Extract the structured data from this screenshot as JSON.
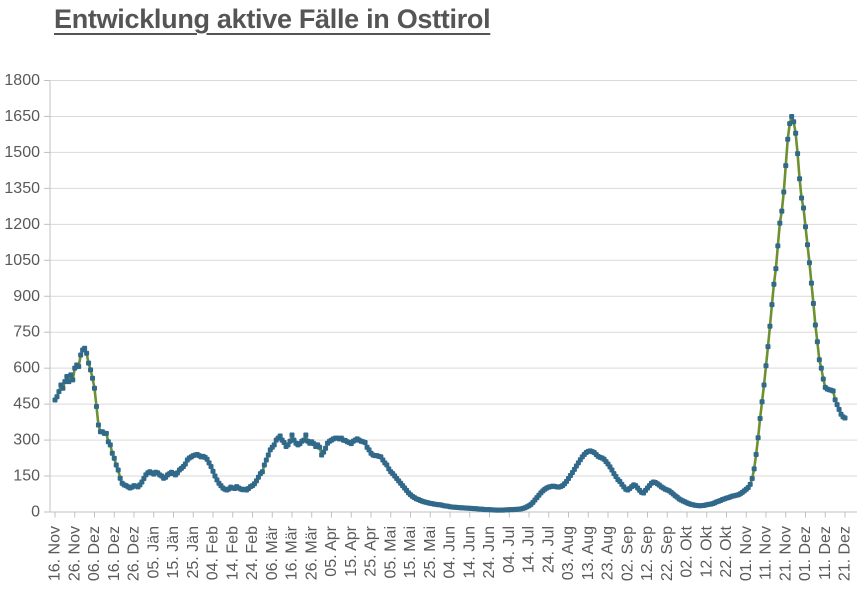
{
  "title": "Entwicklung aktive Fälle in Osttirol",
  "chart_data": {
    "type": "line",
    "title": "Entwicklung aktive Fälle in Osttirol",
    "xlabel": "",
    "ylabel": "",
    "ylim": [
      0,
      1800
    ],
    "y_ticks": [
      0,
      150,
      300,
      450,
      600,
      750,
      900,
      1050,
      1200,
      1350,
      1500,
      1650,
      1800
    ],
    "grid": true,
    "legend_position": "none",
    "marker_shape": "square",
    "x_interval": "daily",
    "x_tick_every_days": 10,
    "x_tick_labels": [
      "16. Nov",
      "26. Nov",
      "06. Dez",
      "16. Dez",
      "26. Dez",
      "05. Jän",
      "15. Jän",
      "25. Jän",
      "04. Feb",
      "14. Feb",
      "24. Feb",
      "06. Mär",
      "16. Mär",
      "26. Mär",
      "05. Apr",
      "15. Apr",
      "25. Apr",
      "05. Mai",
      "15. Mai",
      "25. Mai",
      "04. Jun",
      "14. Jun",
      "24. Jun",
      "04. Jul",
      "14. Jul",
      "24. Jul",
      "03. Aug",
      "13. Aug",
      "23. Aug",
      "02. Sep",
      "12. Sep",
      "22. Sep",
      "02. Okt",
      "12. Okt",
      "22. Okt",
      "01. Nov",
      "11. Nov",
      "21. Nov",
      "01. Dez",
      "11. Dez",
      "21. Dez"
    ],
    "series": [
      {
        "name": "aktive Fälle",
        "values": [
          467,
          481,
          502,
          530,
          516,
          544,
          565,
          544,
          572,
          551,
          600,
          613,
          607,
          655,
          676,
          683,
          662,
          621,
          593,
          558,
          516,
          440,
          363,
          335,
          335,
          328,
          328,
          293,
          280,
          245,
          224,
          196,
          175,
          141,
          120,
          113,
          110,
          105,
          100,
          104,
          110,
          108,
          105,
          113,
          125,
          140,
          155,
          163,
          168,
          163,
          158,
          166,
          163,
          155,
          150,
          141,
          145,
          155,
          160,
          166,
          160,
          155,
          163,
          175,
          182,
          190,
          200,
          217,
          225,
          230,
          235,
          238,
          240,
          235,
          230,
          232,
          228,
          220,
          205,
          190,
          170,
          150,
          134,
          120,
          110,
          100,
          95,
          92,
          96,
          104,
          100,
          98,
          106,
          100,
          96,
          93,
          95,
          92,
          98,
          106,
          110,
          118,
          130,
          145,
          160,
          168,
          196,
          217,
          238,
          259,
          270,
          280,
          300,
          308,
          317,
          300,
          290,
          273,
          280,
          295,
          321,
          300,
          287,
          280,
          285,
          295,
          300,
          321,
          295,
          287,
          293,
          285,
          273,
          280,
          270,
          238,
          250,
          266,
          287,
          295,
          300,
          305,
          308,
          308,
          305,
          308,
          300,
          298,
          293,
          290,
          285,
          295,
          300,
          305,
          300,
          295,
          293,
          290,
          270,
          259,
          245,
          238,
          235,
          235,
          232,
          230,
          217,
          205,
          196,
          180,
          168,
          160,
          150,
          140,
          130,
          120,
          110,
          100,
          90,
          80,
          72,
          65,
          60,
          55,
          52,
          48,
          45,
          42,
          40,
          38,
          36,
          35,
          33,
          32,
          30,
          30,
          28,
          26,
          25,
          24,
          22,
          21,
          20,
          20,
          19,
          18,
          18,
          17,
          16,
          16,
          15,
          15,
          14,
          14,
          13,
          12,
          12,
          11,
          10,
          10,
          10,
          9,
          9,
          8,
          8,
          8,
          8,
          8,
          9,
          9,
          10,
          10,
          10,
          11,
          11,
          12,
          13,
          15,
          18,
          22,
          26,
          32,
          40,
          50,
          60,
          70,
          80,
          88,
          95,
          100,
          104,
          106,
          108,
          107,
          105,
          104,
          106,
          110,
          118,
          128,
          140,
          152,
          165,
          178,
          192,
          205,
          218,
          230,
          240,
          248,
          253,
          255,
          252,
          248,
          240,
          232,
          228,
          225,
          220,
          210,
          200,
          188,
          175,
          160,
          148,
          135,
          127,
          115,
          105,
          95,
          92,
          98,
          106,
          113,
          110,
          100,
          90,
          82,
          79,
          90,
          100,
          110,
          120,
          125,
          123,
          118,
          112,
          105,
          100,
          95,
          92,
          88,
          82,
          75,
          68,
          62,
          55,
          50,
          46,
          42,
          38,
          35,
          32,
          30,
          28,
          27,
          26,
          26,
          27,
          28,
          30,
          32,
          33,
          35,
          38,
          42,
          45,
          48,
          52,
          55,
          58,
          60,
          63,
          66,
          68,
          70,
          72,
          76,
          82,
          88,
          95,
          102,
          115,
          140,
          180,
          240,
          310,
          390,
          460,
          530,
          610,
          690,
          775,
          865,
          950,
          1015,
          1110,
          1205,
          1255,
          1335,
          1445,
          1555,
          1620,
          1650,
          1628,
          1580,
          1495,
          1390,
          1310,
          1268,
          1190,
          1115,
          1040,
          955,
          870,
          780,
          710,
          635,
          600,
          555,
          520,
          513,
          510,
          508,
          505,
          468,
          448,
          428,
          408,
          397,
          392
        ]
      }
    ],
    "colors": {
      "line": "#6d9130",
      "marker": "#31698a",
      "grid": "#d9d9d9",
      "axis": "#c0c0c0",
      "tick": "#c0c0c0",
      "tick_text": "#595959",
      "title_text": "#555555",
      "background": "#ffffff"
    }
  }
}
